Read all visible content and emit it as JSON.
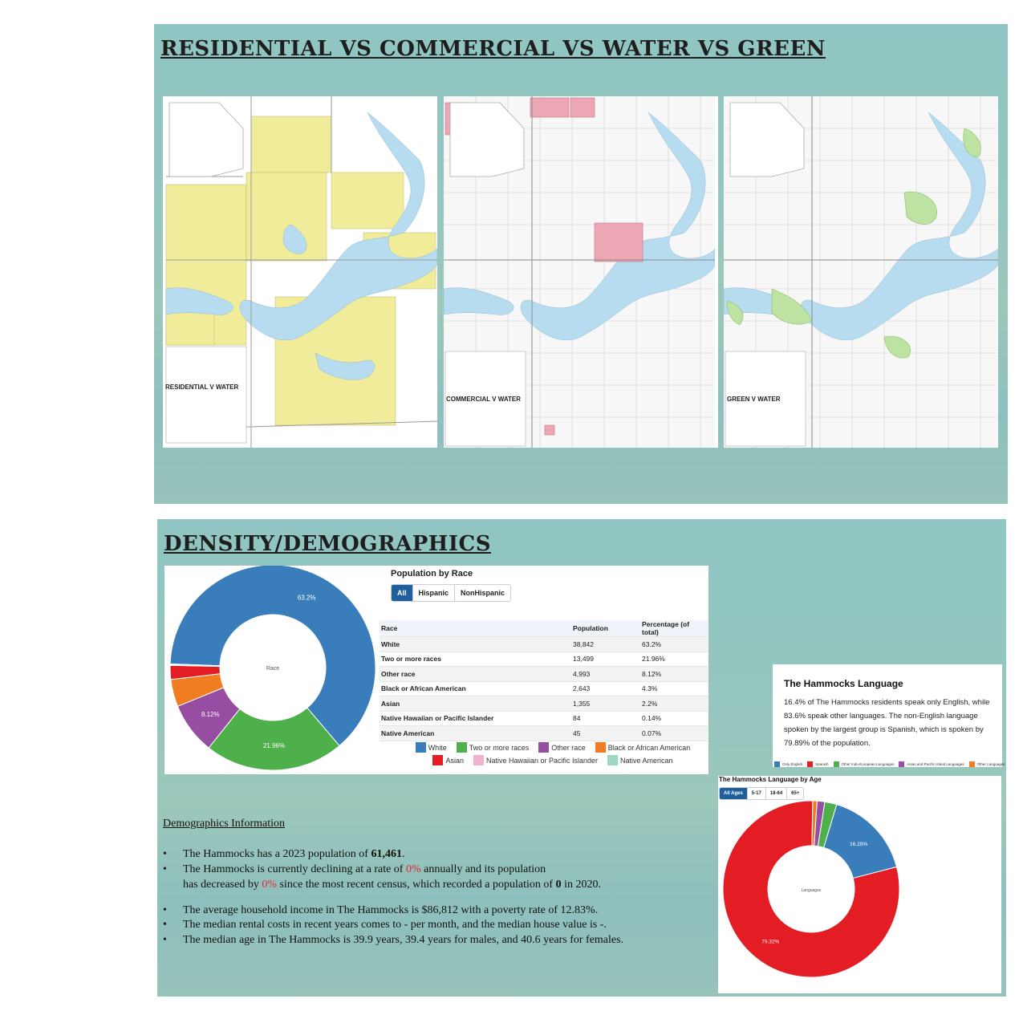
{
  "section1": {
    "title": "RESIDENTIAL VS COMMERCIAL VS WATER VS GREEN",
    "maps": [
      {
        "label": "RESIDENTIAL V WATER",
        "highlight": "#f0ec9a"
      },
      {
        "label": "COMMERCIAL V WATER",
        "highlight": "#eda6b4"
      },
      {
        "label": "GREEN V WATER",
        "highlight": "#bde2a2"
      }
    ],
    "water_color": "#b8dcef"
  },
  "section2": {
    "title": "DENSITY/DEMOGRAPHICS",
    "race_card": {
      "title": "Population by Race",
      "tabs": [
        "All",
        "Hispanic",
        "NonHispanic"
      ],
      "center_label": "Race",
      "columns": [
        "Race",
        "Population",
        "Percentage (of total)"
      ],
      "rows": [
        [
          "White",
          "38,842",
          "63.2%"
        ],
        [
          "Two or more races",
          "13,499",
          "21.96%"
        ],
        [
          "Other race",
          "4,993",
          "8.12%"
        ],
        [
          "Black or African American",
          "2,643",
          "4.3%"
        ],
        [
          "Asian",
          "1,355",
          "2.2%"
        ],
        [
          "Native Hawaiian or Pacific Islander",
          "84",
          "0.14%"
        ],
        [
          "Native American",
          "45",
          "0.07%"
        ]
      ],
      "legend": [
        {
          "name": "White",
          "color": "#3a7dbb"
        },
        {
          "name": "Two or more races",
          "color": "#4db04a"
        },
        {
          "name": "Other race",
          "color": "#974ea2"
        },
        {
          "name": "Black or African American",
          "color": "#f17d22"
        },
        {
          "name": "Asian",
          "color": "#e41c24"
        },
        {
          "name": "Native Hawaiian or Pacific Islander",
          "color": "#efb2d0"
        },
        {
          "name": "Native American",
          "color": "#9ed8c2"
        }
      ]
    },
    "demographics": {
      "heading": "Demographics Information",
      "b1_pre": "The Hammocks has a 2023 population of ",
      "b1_val": "61,461",
      "b1_post": ".",
      "b2_pre": "The Hammocks is currently declining at a rate of ",
      "b2_rate": "0%",
      "b2_post": " annually and its population",
      "b2b_pre": "has decreased by ",
      "b2b_rate": "0%",
      "b2b_mid": " since the most recent census, which recorded a population of ",
      "b2b_val": "0",
      "b2b_post": " in 2020.",
      "b3": "The average household income in The Hammocks is $86,812 with a poverty rate of 12.83%.",
      "b4": "The median rental costs in recent years comes to - per month, and the median house value is -.",
      "b5": "The median age in The Hammocks is 39.9 years, 39.4 years for males, and 40.6 years for females."
    },
    "language_card": {
      "title": "The Hammocks Language",
      "text": "16.4% of The Hammocks residents speak only English, while 83.6% speak other languages. The non-English language spoken by the largest group is Spanish, which is spoken by 79.89% of the population.",
      "legend": [
        {
          "name": "Only English",
          "color": "#3a7dbb"
        },
        {
          "name": "Spanish",
          "color": "#e41c24"
        },
        {
          "name": "Other Indo-European Languages",
          "color": "#4db04a"
        },
        {
          "name": "Asian and Pacific Island Languages",
          "color": "#974ea2"
        },
        {
          "name": "Other Languages",
          "color": "#f17d22"
        }
      ]
    },
    "age_card": {
      "title": "The Hammocks Language by Age",
      "tabs": [
        "All Ages",
        "5-17",
        "18-64",
        "65+"
      ],
      "center_label": "Languages"
    }
  },
  "chart_data": [
    {
      "type": "pie",
      "title": "Population by Race",
      "center_label": "Race",
      "categories": [
        "White",
        "Two or more races",
        "Other race",
        "Black or African American",
        "Asian",
        "Native Hawaiian or Pacific Islander",
        "Native American"
      ],
      "values": [
        63.2,
        21.96,
        8.12,
        4.3,
        2.2,
        0.14,
        0.07
      ],
      "data_labels": [
        "63.2%",
        "21.96%",
        "8.12%",
        "",
        "",
        "",
        ""
      ],
      "colors": [
        "#3a7dbb",
        "#4db04a",
        "#974ea2",
        "#f17d22",
        "#e41c24",
        "#efb2d0",
        "#9ed8c2"
      ]
    },
    {
      "type": "pie",
      "title": "The Hammocks Language by Age",
      "center_label": "Languages",
      "categories": [
        "Spanish",
        "Only English",
        "Other Indo-European Languages",
        "Asian and Pacific Island Languages",
        "Other Languages"
      ],
      "values": [
        79.32,
        16.29,
        2.2,
        1.4,
        0.79
      ],
      "data_labels": [
        "79.32%",
        "16.29%",
        "",
        "",
        ""
      ],
      "colors": [
        "#e41c24",
        "#3a7dbb",
        "#4db04a",
        "#974ea2",
        "#f17d22"
      ]
    }
  ]
}
